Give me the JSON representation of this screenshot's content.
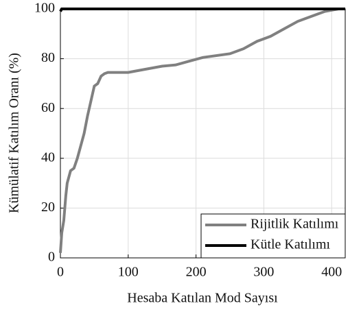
{
  "chart_data": {
    "type": "line",
    "xlabel": "Hesaba Katılan Mod Sayısı",
    "ylabel": "Kümülatif Katılım Oranı (%)",
    "xlim": [
      0,
      420
    ],
    "xticks": [
      0,
      100,
      200,
      300,
      400
    ],
    "ylim": [
      0,
      100
    ],
    "yticks": [
      0,
      20,
      40,
      60,
      80,
      100
    ],
    "grid": true,
    "legend": "lower right",
    "series": [
      {
        "name": "Rijitlik Katılımı",
        "color": "#808080",
        "x": [
          0,
          2,
          5,
          8,
          10,
          15,
          20,
          25,
          30,
          35,
          40,
          45,
          50,
          55,
          60,
          65,
          70,
          100,
          110,
          130,
          150,
          170,
          190,
          210,
          250,
          270,
          290,
          310,
          330,
          350,
          370,
          390,
          410,
          420
        ],
        "values": [
          2,
          10,
          15,
          25,
          30,
          35,
          36,
          40,
          45,
          50,
          57,
          63,
          69,
          70,
          73,
          74,
          74.5,
          74.5,
          75,
          76,
          77,
          77.5,
          79,
          80.5,
          82,
          84,
          87,
          89,
          92,
          95,
          97,
          99,
          100,
          100
        ]
      },
      {
        "name": "Kütle Katılımı",
        "color": "#000000",
        "x": [
          0,
          2,
          420
        ],
        "values": [
          99,
          100,
          100
        ]
      }
    ]
  }
}
